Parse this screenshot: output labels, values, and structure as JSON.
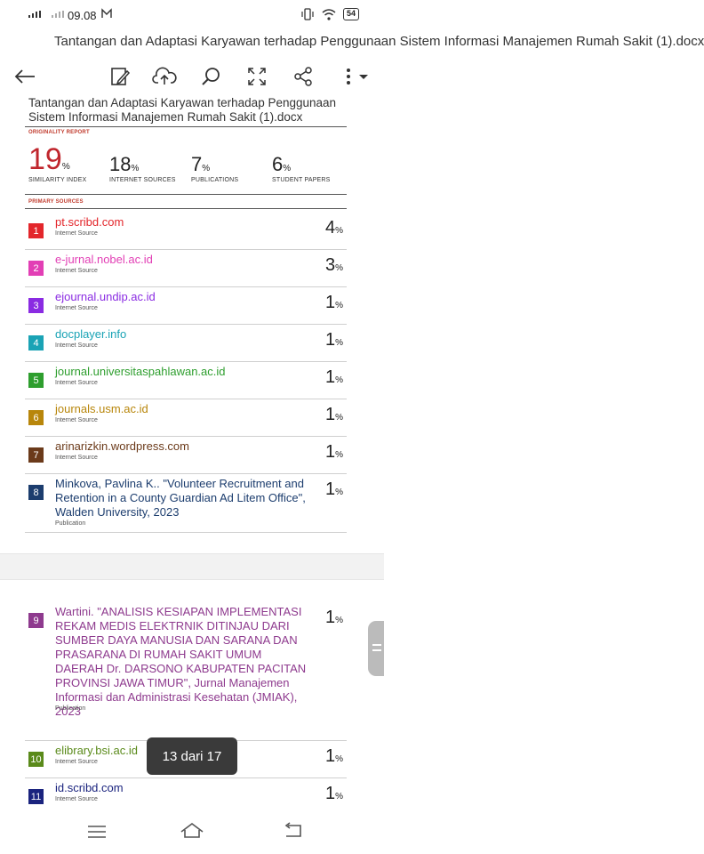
{
  "statusbar": {
    "time": "09.08",
    "battery": "54"
  },
  "header": {
    "title": "Tantangan dan Adaptasi Karyawan terhadap Penggunaan Sistem Informasi Manajemen Rumah Sakit (1).docx"
  },
  "toolbar": {
    "icons": [
      "back-arrow-icon",
      "edit-icon",
      "cloud-upload-icon",
      "search-icon",
      "fullscreen-icon",
      "share-icon",
      "more-icon"
    ]
  },
  "report": {
    "file_name": "Tantangan dan Adaptasi Karyawan terhadap Penggunaan Sistem Informasi Manajemen Rumah Sakit (1).docx",
    "originality_label": "ORIGINALITY REPORT",
    "stats": [
      {
        "value": "19",
        "unit": "%",
        "label": "SIMILARITY INDEX"
      },
      {
        "value": "18",
        "unit": "%",
        "label": "INTERNET SOURCES"
      },
      {
        "value": "7",
        "unit": "%",
        "label": "PUBLICATIONS"
      },
      {
        "value": "6",
        "unit": "%",
        "label": "STUDENT PAPERS"
      }
    ],
    "primary_label": "PRIMARY SOURCES",
    "sources": [
      {
        "num": "1",
        "name": "pt.scribd.com",
        "type": "Internet Source",
        "pct": "4",
        "color": "#e3262b"
      },
      {
        "num": "2",
        "name": "e-jurnal.nobel.ac.id",
        "type": "Internet Source",
        "pct": "3",
        "color": "#e23fb5"
      },
      {
        "num": "3",
        "name": "ejournal.undip.ac.id",
        "type": "Internet Source",
        "pct": "1",
        "color": "#8a2be2"
      },
      {
        "num": "4",
        "name": "docplayer.info",
        "type": "Internet Source",
        "pct": "1",
        "color": "#1aa3b5"
      },
      {
        "num": "5",
        "name": "journal.universitaspahlawan.ac.id",
        "type": "Internet Source",
        "pct": "1",
        "color": "#2e9e2e"
      },
      {
        "num": "6",
        "name": "journals.usm.ac.id",
        "type": "Internet Source",
        "pct": "1",
        "color": "#b8860b"
      },
      {
        "num": "7",
        "name": "arinarizkin.wordpress.com",
        "type": "Internet Source",
        "pct": "1",
        "color": "#6b3a1a"
      },
      {
        "num": "8",
        "name": "Minkova, Pavlina K.. \"Volunteer Recruitment and Retention in a County Guardian Ad Litem Office\", Walden University, 2023",
        "type": "Publication",
        "pct": "1",
        "color": "#1c3d6e"
      },
      {
        "num": "9",
        "name": "Wartini. \"ANALISIS KESIAPAN IMPLEMENTASI REKAM MEDIS ELEKTRNIK DITINJAU DARI SUMBER DAYA MANUSIA DAN SARANA DAN PRASARANA DI RUMAH SAKIT UMUM DAERAH Dr. DARSONO KABUPATEN PACITAN PROVINSI JAWA TIMUR\", Jurnal Manajemen Informasi dan Administrasi Kesehatan (JMIAK), 2023",
        "type": "Publication",
        "pct": "1",
        "color": "#8e3a8e"
      },
      {
        "num": "10",
        "name": "elibrary.bsi.ac.id",
        "type": "Internet Source",
        "pct": "1",
        "color": "#5a8a1a"
      },
      {
        "num": "11",
        "name": "id.scribd.com",
        "type": "Internet Source",
        "pct": "1",
        "color": "#1a237e"
      }
    ]
  },
  "pager": {
    "text": "13 dari 17"
  }
}
